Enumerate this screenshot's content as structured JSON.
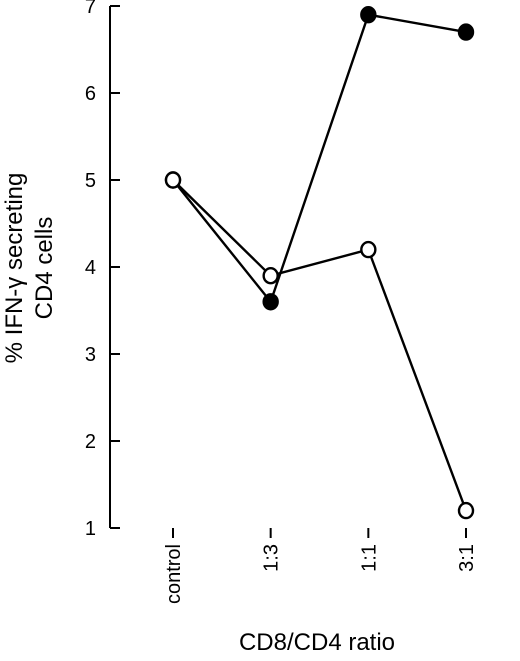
{
  "chart_data": {
    "type": "line",
    "title": "",
    "xlabel": "CD8/CD4 ratio",
    "ylabel_lines": [
      "% IFN-γ  secreting",
      "CD4 cells"
    ],
    "categories": [
      "control",
      "1:3",
      "1:1",
      "3:1"
    ],
    "ylim": [
      1,
      7
    ],
    "yticks": [
      "1",
      "2",
      "3",
      "4",
      "5",
      "6",
      "7"
    ],
    "grid": false,
    "legend": "none",
    "series": [
      {
        "marker": "filled-circle",
        "color": "#000000",
        "values": [
          5.0,
          3.6,
          6.9,
          6.7
        ]
      },
      {
        "marker": "open-circle",
        "color": "#000000",
        "values": [
          5.0,
          3.9,
          4.2,
          1.2
        ]
      }
    ]
  }
}
